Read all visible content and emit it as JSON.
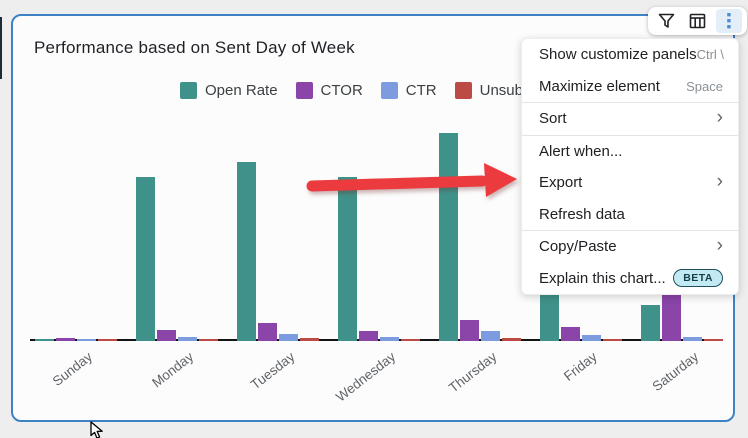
{
  "card": {
    "title": "Performance based on Sent Day of Week"
  },
  "toolbar": {
    "filter_icon": "funnel",
    "table_icon": "table",
    "more_icon": "kebab-vertical-dots",
    "active_color": "#4a8fd3"
  },
  "legend": [
    {
      "label": "Open Rate",
      "color": "#3f9289"
    },
    {
      "label": "CTOR",
      "color": "#8b44a8"
    },
    {
      "label": "CTR",
      "color": "#7d9ce0"
    },
    {
      "label": "Unsubscribe",
      "color": "#bc4b45"
    }
  ],
  "menu": {
    "items": [
      {
        "type": "item",
        "label": "Show customize panels",
        "right": "shortcut",
        "right_text": "Ctrl \\"
      },
      {
        "type": "item",
        "label": "Maximize element",
        "right": "shortcut",
        "right_text": "Space"
      },
      {
        "type": "divider"
      },
      {
        "type": "item",
        "label": "Sort",
        "right": "chevron",
        "right_text": "›"
      },
      {
        "type": "divider"
      },
      {
        "type": "item",
        "label": "Alert when..."
      },
      {
        "type": "item",
        "label": "Export",
        "right": "chevron",
        "right_text": "›"
      },
      {
        "type": "item",
        "label": "Refresh data"
      },
      {
        "type": "divider"
      },
      {
        "type": "item",
        "label": "Copy/Paste",
        "right": "chevron",
        "right_text": "›"
      },
      {
        "type": "item",
        "label": "Explain this chart...",
        "right": "badge",
        "right_text": "BETA"
      }
    ]
  },
  "annotation": {
    "arrow_color": "#ec3b3e",
    "points_to": "Export"
  },
  "chart_data": {
    "type": "bar",
    "title": "Performance based on Sent Day of Week",
    "categories": [
      "Sunday",
      "Monday",
      "Tuesday",
      "Wednesday",
      "Thursday",
      "Friday",
      "Saturday"
    ],
    "series": [
      {
        "name": "Open Rate",
        "color": "#3f9289",
        "values": [
          0.3,
          20.5,
          22.4,
          20.5,
          26.0,
          20.0,
          4.5
        ]
      },
      {
        "name": "CTOR",
        "color": "#8b44a8",
        "values": [
          0.35,
          1.4,
          2.3,
          1.3,
          2.6,
          1.8,
          6.9
        ]
      },
      {
        "name": "CTR",
        "color": "#7d9ce0",
        "values": [
          0.3,
          0.55,
          0.9,
          0.45,
          1.25,
          0.75,
          0.5
        ]
      },
      {
        "name": "Unsubscribe",
        "color": "#bc4b45",
        "values": [
          0.25,
          0.25,
          0.4,
          0.25,
          0.4,
          0.25,
          0.25
        ]
      }
    ],
    "ylim": [
      0,
      27
    ],
    "y_axis_visible": false,
    "grid": false,
    "legend_position": "top",
    "xlabel": "",
    "ylabel": ""
  }
}
